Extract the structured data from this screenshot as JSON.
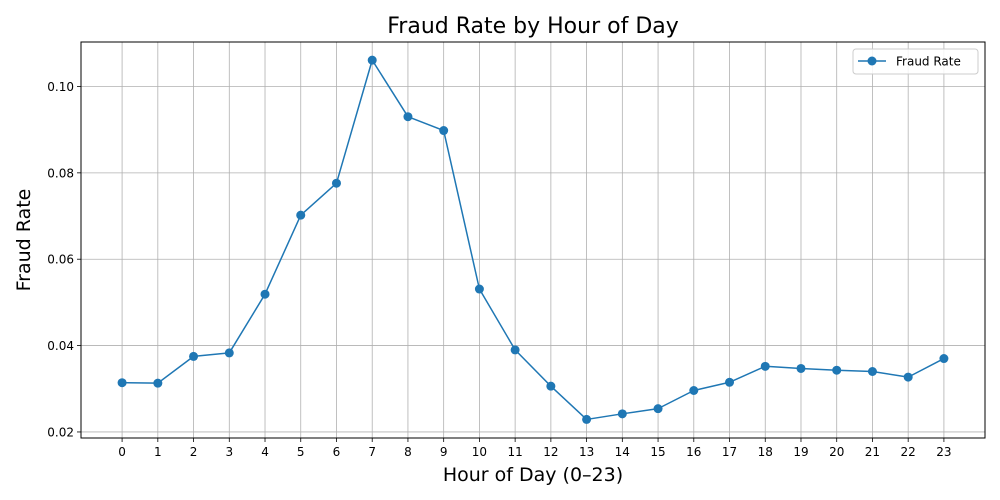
{
  "chart_data": {
    "type": "line",
    "title": "Fraud Rate by Hour of Day",
    "xlabel": "Hour of Day (0–23)",
    "ylabel": "Fraud Rate",
    "x": [
      0,
      1,
      2,
      3,
      4,
      5,
      6,
      7,
      8,
      9,
      10,
      11,
      12,
      13,
      14,
      15,
      16,
      17,
      18,
      19,
      20,
      21,
      22,
      23
    ],
    "x_tick_labels": [
      "0",
      "1",
      "2",
      "3",
      "4",
      "5",
      "6",
      "7",
      "8",
      "9",
      "10",
      "11",
      "12",
      "13",
      "14",
      "15",
      "16",
      "17",
      "18",
      "19",
      "20",
      "21",
      "22",
      "23"
    ],
    "y_ticks": [
      0.02,
      0.04,
      0.06,
      0.08,
      0.1
    ],
    "y_tick_labels": [
      "0.02",
      "0.04",
      "0.06",
      "0.08",
      "0.10"
    ],
    "xlim": [
      -1.15,
      24.15
    ],
    "ylim": [
      0.0186,
      0.1103
    ],
    "grid": true,
    "legend": "upper-right",
    "series": [
      {
        "name": "Fraud Rate",
        "color": "#1f77b4",
        "marker": "circle",
        "values": [
          0.0314,
          0.0313,
          0.0375,
          0.0383,
          0.0519,
          0.0702,
          0.0776,
          0.1061,
          0.093,
          0.0898,
          0.0531,
          0.039,
          0.0306,
          0.0229,
          0.0242,
          0.0254,
          0.0296,
          0.0315,
          0.0352,
          0.0347,
          0.0343,
          0.034,
          0.0327,
          0.037
        ]
      }
    ]
  }
}
